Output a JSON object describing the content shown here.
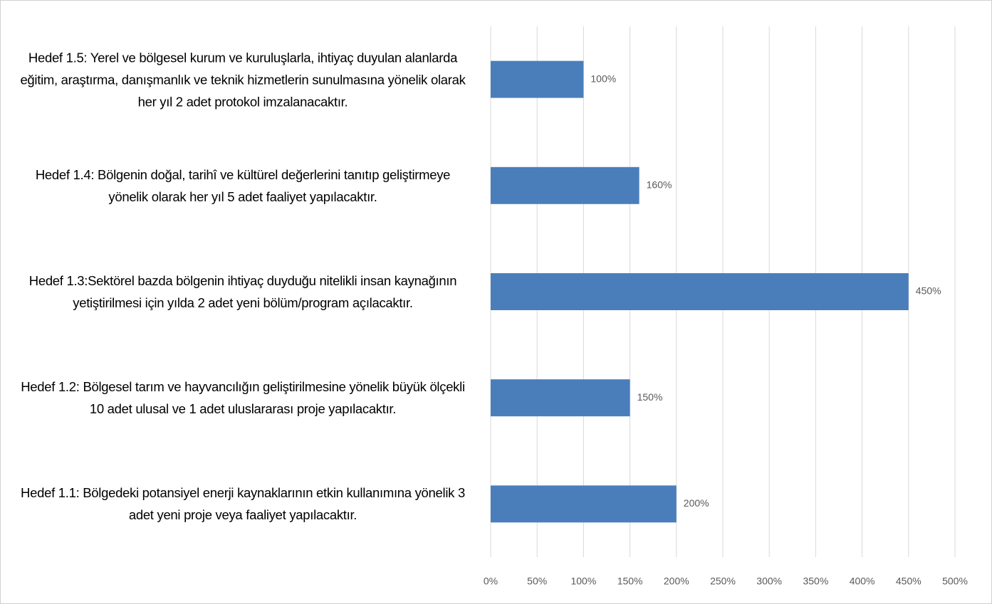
{
  "chart_data": {
    "type": "bar",
    "orientation": "horizontal",
    "categories": [
      "Hedef 1.5:  Yerel ve bölgesel kurum ve kuruluşlarla, ihtiyaç duyulan alanlarda eğitim, araştırma, danışmanlık ve teknik hizmetlerin sunulmasına yönelik olarak her yıl 2 adet protokol imzalanacaktır.",
      "Hedef 1.4: Bölgenin doğal, tarihî ve kültürel değerlerini tanıtıp geliştirmeye yönelik olarak her yıl 5 adet faaliyet yapılacaktır.",
      "Hedef 1.3:Sektörel bazda bölgenin ihtiyaç duyduğu nitelikli insan kaynağının yetiştirilmesi için yılda 2 adet yeni bölüm/program açılacaktır.",
      "Hedef 1.2: Bölgesel tarım ve hayvancılığın geliştirilmesine yönelik büyük ölçekli 10 adet ulusal ve 1 adet uluslararası proje yapılacaktır.",
      "Hedef 1.1: Bölgedeki potansiyel enerji kaynaklarının etkin kullanımına yönelik 3 adet yeni proje veya faaliyet yapılacaktır."
    ],
    "values": [
      100,
      160,
      450,
      150,
      200
    ],
    "value_labels": [
      "100%",
      "160%",
      "450%",
      "150%",
      "200%"
    ],
    "color": "#4a7ebb",
    "xlim": [
      0,
      500
    ],
    "xticks": [
      {
        "value": 0,
        "label": "0%"
      },
      {
        "value": 50,
        "label": "50%"
      },
      {
        "value": 100,
        "label": "100%"
      },
      {
        "value": 150,
        "label": "150%"
      },
      {
        "value": 200,
        "label": "200%"
      },
      {
        "value": 250,
        "label": "250%"
      },
      {
        "value": 300,
        "label": "300%"
      },
      {
        "value": 350,
        "label": "350%"
      },
      {
        "value": 400,
        "label": "400%"
      },
      {
        "value": 450,
        "label": "450%"
      },
      {
        "value": 500,
        "label": "500%"
      }
    ],
    "grid": true
  }
}
